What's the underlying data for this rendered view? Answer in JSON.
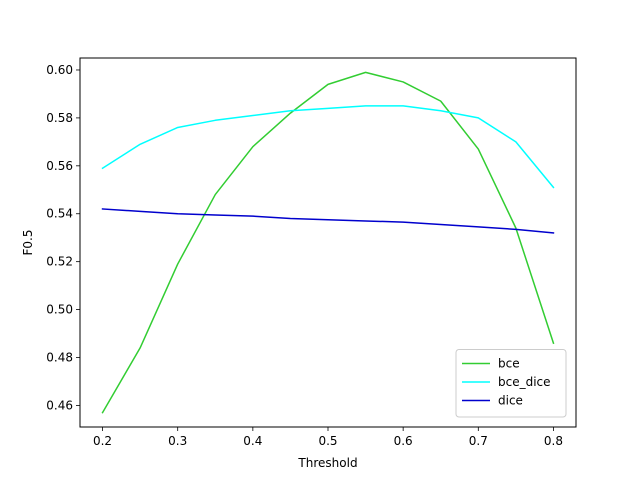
{
  "chart_data": {
    "type": "line",
    "title": "",
    "xlabel": "Threshold",
    "ylabel": "F0.5",
    "xlim": [
      0.17,
      0.83
    ],
    "ylim": [
      0.451,
      0.605
    ],
    "xticks": [
      0.2,
      0.3,
      0.4,
      0.5,
      0.6,
      0.7,
      0.8
    ],
    "xtick_labels": [
      "0.2",
      "0.3",
      "0.4",
      "0.5",
      "0.6",
      "0.7",
      "0.8"
    ],
    "yticks": [
      0.46,
      0.48,
      0.5,
      0.52,
      0.54,
      0.56,
      0.58,
      0.6
    ],
    "ytick_labels": [
      "0.46",
      "0.48",
      "0.50",
      "0.52",
      "0.54",
      "0.56",
      "0.58",
      "0.60"
    ],
    "grid": false,
    "legend_position": "lower-right",
    "x": [
      0.2,
      0.25,
      0.3,
      0.35,
      0.4,
      0.45,
      0.5,
      0.55,
      0.6,
      0.65,
      0.7,
      0.75,
      0.8
    ],
    "series": [
      {
        "name": "bce",
        "color": "#32cd32",
        "values": [
          0.457,
          0.484,
          0.519,
          0.548,
          0.568,
          0.582,
          0.594,
          0.599,
          0.595,
          0.587,
          0.567,
          0.534,
          0.486
        ]
      },
      {
        "name": "bce_dice",
        "color": "#00ffff",
        "values": [
          0.559,
          0.569,
          0.576,
          0.579,
          0.581,
          0.583,
          0.584,
          0.585,
          0.585,
          0.583,
          0.58,
          0.57,
          0.551
        ]
      },
      {
        "name": "dice",
        "color": "#0000cd",
        "values": [
          0.542,
          0.541,
          0.54,
          0.5395,
          0.539,
          0.538,
          0.5375,
          0.537,
          0.5365,
          0.5355,
          0.5345,
          0.5335,
          0.532
        ]
      }
    ]
  }
}
